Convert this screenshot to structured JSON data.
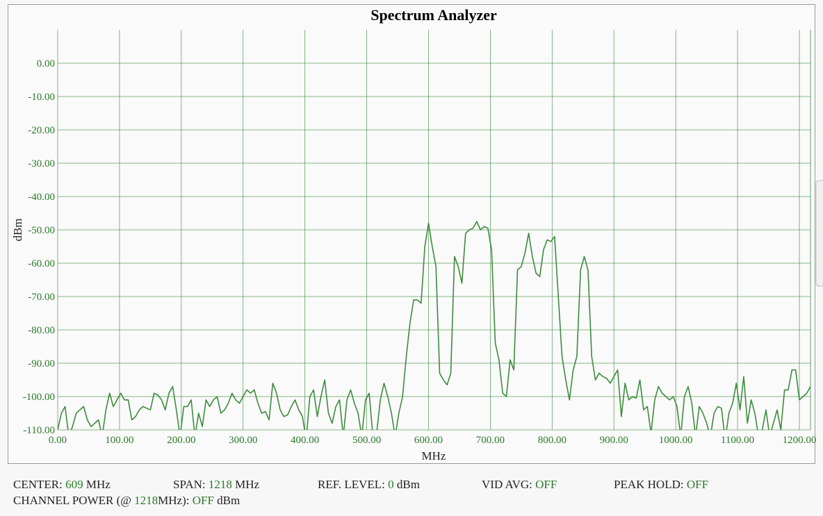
{
  "chart_data": {
    "type": "line",
    "title": "Spectrum Analyzer",
    "x_label": "MHz",
    "y_label": "dBm",
    "color": "#3d8b3d",
    "grid": true,
    "xlim": [
      0,
      1218
    ],
    "ylim": [
      -110,
      10
    ],
    "xticks": [
      {
        "value": 0,
        "label": "0.00"
      },
      {
        "value": 100,
        "label": "100.00"
      },
      {
        "value": 200,
        "label": "200.00"
      },
      {
        "value": 300,
        "label": "300.00"
      },
      {
        "value": 400,
        "label": "400.00"
      },
      {
        "value": 500,
        "label": "500.00"
      },
      {
        "value": 600,
        "label": "600.00"
      },
      {
        "value": 700,
        "label": "700.00"
      },
      {
        "value": 800,
        "label": "800.00"
      },
      {
        "value": 900,
        "label": "900.00"
      },
      {
        "value": 1000,
        "label": "1000.00"
      },
      {
        "value": 1100,
        "label": "1100.00"
      },
      {
        "value": 1200,
        "label": "1200.00"
      }
    ],
    "yticks": [
      {
        "value": 0,
        "label": "0.00"
      },
      {
        "value": -10,
        "label": "-10.00"
      },
      {
        "value": -20,
        "label": "-20.00"
      },
      {
        "value": -30,
        "label": "-30.00"
      },
      {
        "value": -40,
        "label": "-40.00"
      },
      {
        "value": -50,
        "label": "-50.00"
      },
      {
        "value": -60,
        "label": "-60.00"
      },
      {
        "value": -70,
        "label": "-70.00"
      },
      {
        "value": -80,
        "label": "-80.00"
      },
      {
        "value": -90,
        "label": "-90.00"
      },
      {
        "value": -100,
        "label": "-100.00"
      },
      {
        "value": -110,
        "label": "-110.00"
      }
    ],
    "x": [
      0,
      6,
      12,
      18,
      24,
      30,
      36,
      42,
      48,
      54,
      60,
      66,
      72,
      78,
      84,
      90,
      96,
      102,
      108,
      114,
      120,
      126,
      132,
      138,
      144,
      150,
      156,
      162,
      168,
      174,
      180,
      186,
      192,
      198,
      204,
      210,
      216,
      222,
      228,
      234,
      240,
      246,
      252,
      258,
      264,
      270,
      276,
      282,
      288,
      294,
      300,
      306,
      312,
      318,
      324,
      330,
      336,
      342,
      348,
      354,
      360,
      366,
      372,
      378,
      384,
      390,
      396,
      402,
      408,
      414,
      420,
      426,
      432,
      438,
      444,
      450,
      456,
      462,
      468,
      474,
      480,
      486,
      492,
      498,
      504,
      510,
      516,
      522,
      528,
      534,
      540,
      546,
      552,
      558,
      564,
      570,
      576,
      582,
      588,
      594,
      600,
      606,
      612,
      618,
      624,
      630,
      636,
      642,
      648,
      654,
      660,
      666,
      672,
      678,
      684,
      690,
      696,
      702,
      708,
      714,
      720,
      726,
      732,
      738,
      744,
      750,
      756,
      762,
      768,
      774,
      780,
      786,
      792,
      798,
      804,
      810,
      816,
      822,
      828,
      834,
      840,
      846,
      852,
      858,
      864,
      870,
      876,
      882,
      888,
      894,
      900,
      906,
      912,
      918,
      924,
      930,
      936,
      942,
      948,
      954,
      960,
      966,
      972,
      978,
      984,
      990,
      996,
      1002,
      1008,
      1014,
      1020,
      1026,
      1032,
      1038,
      1044,
      1050,
      1056,
      1062,
      1068,
      1074,
      1080,
      1086,
      1092,
      1098,
      1104,
      1110,
      1116,
      1122,
      1128,
      1134,
      1140,
      1146,
      1152,
      1158,
      1164,
      1170,
      1176,
      1182,
      1188,
      1194,
      1200,
      1206,
      1212,
      1218
    ],
    "values": [
      -110,
      -105,
      -103,
      -112,
      -109,
      -105,
      -104,
      -103,
      -107,
      -109,
      -108,
      -107,
      -112,
      -104,
      -99,
      -103,
      -101,
      -99,
      -101,
      -101,
      -107,
      -106,
      -104,
      -103,
      -103.5,
      -104,
      -99,
      -99.5,
      -101,
      -104,
      -99,
      -97,
      -104,
      -112,
      -103,
      -103,
      -101,
      -112,
      -105,
      -109,
      -101,
      -103,
      -101,
      -100,
      -105,
      -104,
      -102,
      -99,
      -101,
      -102,
      -100,
      -98,
      -99,
      -98,
      -102,
      -105,
      -104.5,
      -107,
      -96,
      -99,
      -104,
      -106,
      -105.5,
      -103,
      -101,
      -104,
      -106,
      -113,
      -100,
      -98,
      -106,
      -100,
      -95,
      -105,
      -108,
      -103,
      -101,
      -112,
      -101,
      -98,
      -102,
      -105,
      -112,
      -101,
      -99,
      -112,
      -111,
      -101,
      -96,
      -100,
      -105,
      -112,
      -105,
      -100,
      -88,
      -78,
      -71,
      -71,
      -72,
      -55,
      -48,
      -55,
      -61,
      -93,
      -95,
      -96.5,
      -93,
      -58,
      -61,
      -66,
      -51,
      -50,
      -49.5,
      -47.5,
      -50,
      -49,
      -49.5,
      -56,
      -84,
      -89,
      -99,
      -100,
      -89,
      -92,
      -62,
      -61,
      -57,
      -51,
      -58,
      -63,
      -64,
      -56,
      -53,
      -53.5,
      -52,
      -70,
      -88,
      -95,
      -101,
      -92,
      -88,
      -62,
      -58,
      -62,
      -88,
      -95,
      -93,
      -94,
      -94.5,
      -96,
      -94,
      -92,
      -106,
      -96,
      -101,
      -100,
      -100.5,
      -95,
      -104,
      -103,
      -111,
      -101,
      -97,
      -99,
      -100,
      -101,
      -100,
      -103,
      -112,
      -100,
      -97,
      -102,
      -112,
      -103,
      -105,
      -108,
      -112,
      -105,
      -103,
      -103.5,
      -113,
      -105,
      -102,
      -96,
      -104,
      -94,
      -108,
      -101,
      -105,
      -112,
      -110,
      -104,
      -112,
      -108,
      -104,
      -110,
      -98,
      -98,
      -92,
      -92,
      -101,
      -100,
      -99,
      -97
    ]
  },
  "status": [
    {
      "label": "CENTER:",
      "value": 609,
      "unit": "MHz"
    },
    {
      "label": "SPAN:",
      "value": 1218,
      "unit": "MHz"
    },
    {
      "label": "REF. LEVEL:",
      "value": 0,
      "unit": "dBm"
    },
    {
      "label": "VID AVG:",
      "value": "OFF"
    },
    {
      "label": "PEAK HOLD:",
      "value": "OFF"
    }
  ],
  "channel_power": {
    "label": "CHANNEL POWER (@",
    "bandwidth": 1218,
    "label_end": "MHz):",
    "value": "OFF",
    "unit": "dBm"
  }
}
